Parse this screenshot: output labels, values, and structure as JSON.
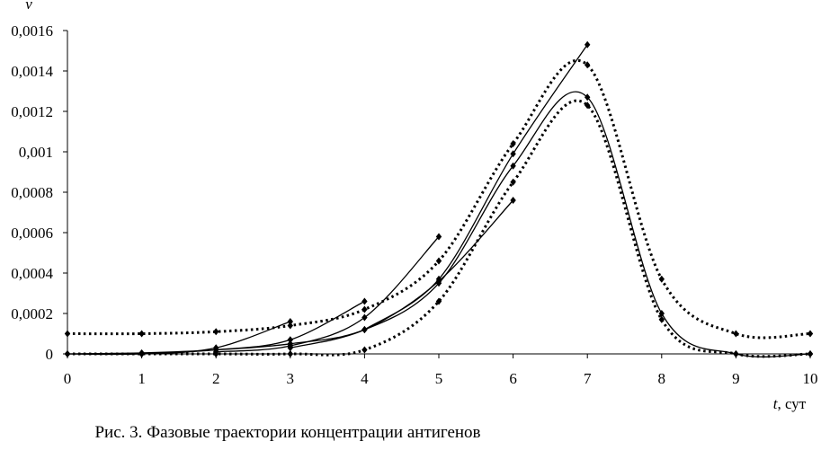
{
  "chart_data": {
    "type": "line",
    "ylabel": "v",
    "xlabel_var": "t",
    "xlabel_unit": ", сут",
    "caption": "Рис. 3. Фазовые траектории концентрации антигенов",
    "xlim": [
      0,
      10
    ],
    "ylim": [
      0,
      0.0016
    ],
    "x_ticks": [
      "0",
      "1",
      "2",
      "3",
      "4",
      "5",
      "6",
      "7",
      "8",
      "9",
      "10"
    ],
    "y_ticks": [
      "0",
      "0,0002",
      "0,0004",
      "0,0006",
      "0,0008",
      "0,001",
      "0,0012",
      "0,0014",
      "0,0016"
    ],
    "grid": false,
    "legend": "none",
    "colors": {
      "line": "#000000",
      "background": "#ffffff"
    },
    "series": [
      {
        "style": "dotted",
        "points": [
          [
            0,
            0.0001
          ],
          [
            1,
            0.0001
          ],
          [
            2,
            0.00011
          ],
          [
            3,
            0.00014
          ],
          [
            4,
            0.00022
          ],
          [
            5,
            0.00046
          ],
          [
            6,
            0.00104
          ],
          [
            7,
            0.00143
          ],
          [
            8,
            0.00037
          ],
          [
            9,
            0.0001
          ],
          [
            10,
            0.0001
          ]
        ]
      },
      {
        "style": "solid",
        "points": [
          [
            0,
            0
          ],
          [
            1,
            5e-06
          ],
          [
            2,
            2e-05
          ],
          [
            3,
            5e-05
          ],
          [
            4,
            0.00012
          ],
          [
            5,
            0.00035
          ],
          [
            6,
            0.00093
          ],
          [
            7,
            0.00127
          ],
          [
            8,
            0.0002
          ],
          [
            9,
            0
          ],
          [
            10,
            0
          ]
        ]
      },
      {
        "style": "dotted",
        "points": [
          [
            0,
            0
          ],
          [
            1,
            0
          ],
          [
            2,
            0
          ],
          [
            3,
            0
          ],
          [
            4,
            2e-05
          ],
          [
            5,
            0.00026
          ],
          [
            6,
            0.00085
          ],
          [
            7,
            0.00123
          ],
          [
            8,
            0.00017
          ],
          [
            9,
            0
          ],
          [
            10,
            0
          ]
        ]
      },
      {
        "style": "solid",
        "points": [
          [
            0,
            0
          ],
          [
            1,
            0
          ],
          [
            2,
            3e-05
          ],
          [
            3,
            0.00016
          ]
        ]
      },
      {
        "style": "solid",
        "points": [
          [
            1,
            0
          ],
          [
            2,
            2e-05
          ],
          [
            3,
            7e-05
          ],
          [
            4,
            0.00026
          ]
        ]
      },
      {
        "style": "solid",
        "points": [
          [
            2,
            1e-05
          ],
          [
            3,
            4e-05
          ],
          [
            4,
            0.00018
          ],
          [
            5,
            0.00058
          ]
        ]
      },
      {
        "style": "solid",
        "points": [
          [
            3,
            3e-05
          ],
          [
            4,
            0.00012
          ],
          [
            5,
            0.00036
          ],
          [
            6,
            0.00076
          ]
        ]
      },
      {
        "style": "solid",
        "points": [
          [
            4,
            0.00012
          ],
          [
            5,
            0.00037
          ],
          [
            6,
            0.00099
          ],
          [
            7,
            0.00153
          ]
        ]
      }
    ]
  }
}
